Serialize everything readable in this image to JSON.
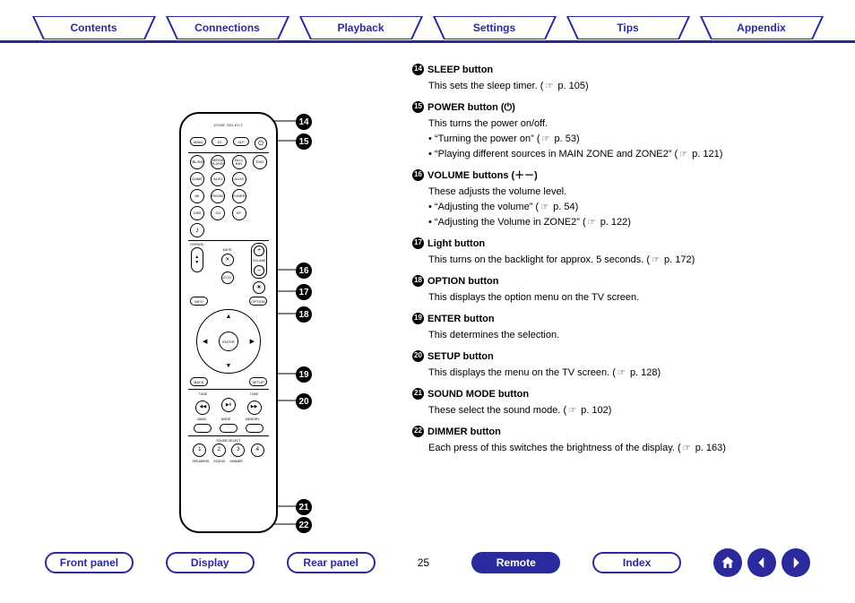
{
  "colors": {
    "brand": "#2a2a9c",
    "text": "#000000",
    "bg": "#ffffff"
  },
  "top_tabs": [
    "Contents",
    "Connections",
    "Playback",
    "Settings",
    "Tips",
    "Appendix"
  ],
  "page_number": "25",
  "bottom_tabs": {
    "front_panel": "Front panel",
    "display": "Display",
    "rear_panel": "Rear panel",
    "remote": "Remote",
    "index": "Index"
  },
  "callouts": {
    "14": "14",
    "15": "15",
    "16": "16",
    "17": "17",
    "18": "18",
    "19": "19",
    "20": "20",
    "21": "21",
    "22": "22"
  },
  "descriptions": [
    {
      "n": "14",
      "title": "SLEEP button",
      "body": "This sets the sleep timer.",
      "ref": "p. 105"
    },
    {
      "n": "15",
      "title": "POWER button (⏻)",
      "body": "This turns the power on/off.",
      "bullets": [
        {
          "text": "“Turning the power on”",
          "ref": "p. 53"
        },
        {
          "text": "“Playing different sources in MAIN ZONE and ZONE2”",
          "ref": "p. 121"
        }
      ]
    },
    {
      "n": "16",
      "title": "VOLUME buttons (＋－)",
      "body": "These adjusts the volume level.",
      "bullets": [
        {
          "text": "“Adjusting the volume”",
          "ref": "p. 54"
        },
        {
          "text": "“Adjusting the Volume in ZONE2”",
          "ref": "p. 122"
        }
      ]
    },
    {
      "n": "17",
      "title": "Light button",
      "body": "This turns on the backlight for approx. 5 seconds.",
      "ref": "p. 172"
    },
    {
      "n": "18",
      "title": "OPTION button",
      "body": "This displays the option menu on the TV screen."
    },
    {
      "n": "19",
      "title": "ENTER button",
      "body": "This determines the selection."
    },
    {
      "n": "20",
      "title": "SETUP button",
      "body": "This displays the menu on the TV screen.",
      "ref": "p. 128"
    },
    {
      "n": "21",
      "title": "SOUND MODE button",
      "body": "These select the sound mode.",
      "ref": "p. 102"
    },
    {
      "n": "22",
      "title": "DIMMER button",
      "body": "Each press of this switches the brightness of the display.",
      "ref": "p. 163"
    }
  ],
  "remote": {
    "zone_select": "ZONE SELECT",
    "top_row": [
      "MAIN",
      "Z2",
      "SLP",
      "⏻"
    ],
    "sources_row1": [
      "CBL/SAT",
      "MEDIA PLAYER",
      "BLU-RAY",
      "DVD"
    ],
    "sources_row2": [
      "GAME",
      "AUX1",
      "AUX2",
      ""
    ],
    "sources_row3": [
      "8K",
      "PHONO",
      "TUNER",
      ""
    ],
    "sources_row4": [
      "USB",
      "CD",
      "BT",
      ""
    ],
    "sources_row5": [
      "♪",
      "",
      "",
      ""
    ],
    "ch_page": "CH/PAGE",
    "mute": "MUTE",
    "eco": "ECO",
    "volume": "VOLUME",
    "light": "☀",
    "info": "INFO",
    "option": "OPTION",
    "enter": "ENTER",
    "back": "BACK",
    "setup": "SETUP",
    "tune": "TUNE",
    "tune_minus": "◀◀",
    "tune_plus": "▶▶",
    "band": "BAND",
    "mode": "MODE",
    "memory": "MEMORY",
    "sound_select": "SOUND SELECT",
    "numbers": [
      "1",
      "2",
      "3",
      "4"
    ],
    "bottom_labels": [
      "SPEAKERS",
      "STATUS",
      "DIMMER",
      ""
    ]
  }
}
